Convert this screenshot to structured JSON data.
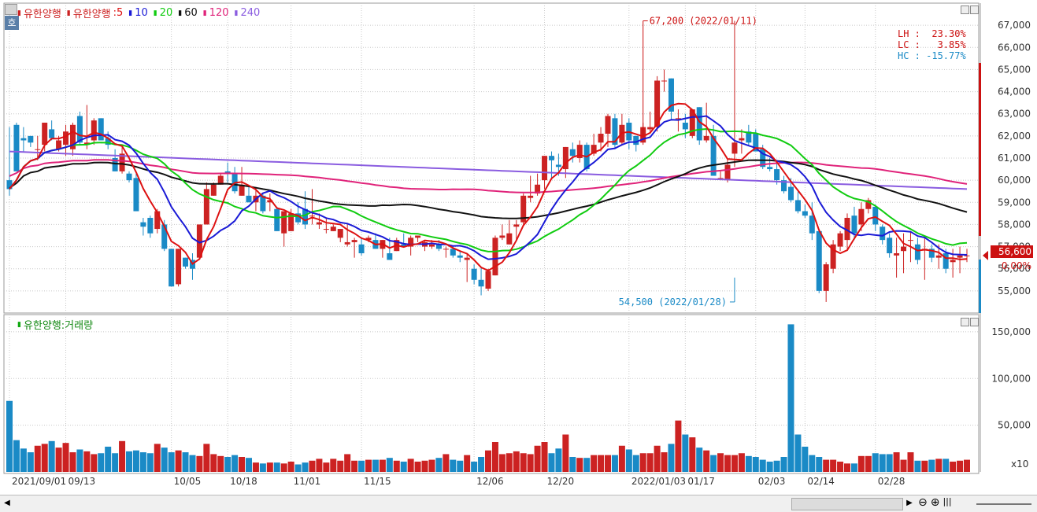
{
  "legend": {
    "stock_name": "유한양행",
    "ma_prefix": "유한양행",
    "ma_items": [
      {
        "label": ":5",
        "color": "#dd1111"
      },
      {
        "label": "10",
        "color": "#1a1ad6"
      },
      {
        "label": "20",
        "color": "#11cc11"
      },
      {
        "label": "60",
        "color": "#111111"
      },
      {
        "label": "120",
        "color": "#e0237a"
      },
      {
        "label": "240",
        "color": "#8a5ce0"
      }
    ]
  },
  "volume_legend": {
    "label": "유한양행:거래량"
  },
  "ho_button": "호",
  "stats": {
    "lh": "LH :  23.30%",
    "lc": "LC :   3.85%",
    "hc": "HC : -15.77%"
  },
  "current_price": "56,600",
  "change_pct": "0.00%",
  "volume_scale_note": "x10",
  "colors": {
    "up": "#cc2222",
    "down": "#1a8ac6",
    "ma5": "#dd1111",
    "ma10": "#1a1ad6",
    "ma20": "#11cc11",
    "ma60": "#111111",
    "ma120": "#e0237a",
    "ma240": "#8a5ce0"
  },
  "chart_data": [
    {
      "type": "candlestick",
      "title": "유한양행",
      "ylim": [
        54000,
        68000
      ],
      "y_ticks": [
        "67,000",
        "66,000",
        "65,000",
        "64,000",
        "63,000",
        "62,000",
        "61,000",
        "60,000",
        "59,000",
        "58,000",
        "57,000",
        "56,000",
        "55,000"
      ],
      "y_tick_values": [
        67000,
        66000,
        65000,
        64000,
        63000,
        62000,
        61000,
        60000,
        59000,
        58000,
        57000,
        56000,
        55000
      ],
      "x_ticks": [
        {
          "index": 0,
          "label": "2021/09/01"
        },
        {
          "index": 8,
          "label": "09/13"
        },
        {
          "index": 23,
          "label": "10/05"
        },
        {
          "index": 31,
          "label": "10/18"
        },
        {
          "index": 40,
          "label": "11/01"
        },
        {
          "index": 50,
          "label": "11/15"
        },
        {
          "index": 66,
          "label": "12/06"
        },
        {
          "index": 76,
          "label": "12/20"
        },
        {
          "index": 88,
          "label": "2022/01/03"
        },
        {
          "index": 96,
          "label": "01/17"
        },
        {
          "index": 106,
          "label": "02/03"
        },
        {
          "index": 113,
          "label": "02/14"
        },
        {
          "index": 123,
          "label": "02/28"
        }
      ],
      "annotations": [
        {
          "text": "67,200 (2022/01/11)",
          "index": 90,
          "value": 67200
        },
        {
          "text": "54,500 (2022/01/28)",
          "index": 103,
          "value": 54500
        }
      ],
      "candles": [
        [
          60000,
          62400,
          59300,
          59600
        ],
        [
          62500,
          62600,
          60400,
          60400
        ],
        [
          61900,
          62400,
          61300,
          61800
        ],
        [
          62000,
          62000,
          61500,
          61700
        ],
        [
          61400,
          62000,
          60900,
          61400
        ],
        [
          61600,
          62600,
          61300,
          62600
        ],
        [
          62300,
          62700,
          61800,
          61900
        ],
        [
          61400,
          62000,
          61300,
          61800
        ],
        [
          61600,
          62500,
          61100,
          62200
        ],
        [
          61400,
          62600,
          61100,
          62500
        ],
        [
          62900,
          63100,
          61600,
          61700
        ],
        [
          61600,
          63400,
          61400,
          61700
        ],
        [
          61800,
          62800,
          61600,
          62700
        ],
        [
          62800,
          62800,
          61800,
          61800
        ],
        [
          61900,
          62200,
          61400,
          61600
        ],
        [
          61000,
          61400,
          60400,
          60400
        ],
        [
          60400,
          61600,
          60300,
          61200
        ],
        [
          60300,
          60400,
          59900,
          60000
        ],
        [
          60100,
          60300,
          58600,
          58600
        ],
        [
          58100,
          58300,
          57500,
          57900
        ],
        [
          58300,
          58400,
          57400,
          57600
        ],
        [
          57800,
          58700,
          57600,
          58600
        ],
        [
          58000,
          58200,
          56800,
          56900
        ],
        [
          56900,
          56900,
          55200,
          55200
        ],
        [
          55300,
          56900,
          55200,
          56900
        ],
        [
          56500,
          56500,
          56000,
          56100
        ],
        [
          56400,
          56700,
          55500,
          56000
        ],
        [
          56500,
          58000,
          56500,
          58000
        ],
        [
          58000,
          59900,
          58000,
          59600
        ],
        [
          59300,
          59900,
          59300,
          59800
        ],
        [
          59800,
          60300,
          59800,
          60200
        ],
        [
          60400,
          60800,
          59900,
          60300
        ],
        [
          60300,
          60600,
          59400,
          59500
        ],
        [
          59300,
          60600,
          59300,
          59800
        ],
        [
          59300,
          59700,
          59000,
          59000
        ],
        [
          59000,
          59700,
          58600,
          59300
        ],
        [
          59300,
          59400,
          58500,
          58600
        ],
        [
          59000,
          59400,
          58600,
          59100
        ],
        [
          58700,
          58800,
          57700,
          57700
        ],
        [
          57600,
          58600,
          57000,
          58600
        ],
        [
          57700,
          58700,
          57700,
          58500
        ],
        [
          58500,
          59000,
          58000,
          58100
        ],
        [
          58700,
          59500,
          57800,
          58000
        ],
        [
          58400,
          59600,
          58000,
          58400
        ],
        [
          58000,
          58500,
          57800,
          58100
        ],
        [
          57800,
          58300,
          57600,
          57800
        ],
        [
          57700,
          58000,
          57700,
          57900
        ],
        [
          57400,
          57800,
          57200,
          57800
        ],
        [
          57100,
          58000,
          57000,
          57200
        ],
        [
          57200,
          57400,
          56500,
          57300
        ],
        [
          57100,
          57400,
          56600,
          56700
        ],
        [
          57300,
          57500,
          57200,
          57400
        ],
        [
          57300,
          57600,
          56900,
          56900
        ],
        [
          56900,
          57300,
          56500,
          57300
        ],
        [
          56700,
          57400,
          56400,
          56400
        ],
        [
          56800,
          57400,
          56800,
          57300
        ],
        [
          57100,
          57600,
          57000,
          57000
        ],
        [
          57000,
          57500,
          56600,
          57400
        ],
        [
          57400,
          57500,
          57200,
          57500
        ],
        [
          57000,
          57300,
          56800,
          57200
        ],
        [
          57000,
          57300,
          56900,
          57100
        ],
        [
          57100,
          57300,
          56800,
          56900
        ],
        [
          56900,
          57000,
          56500,
          56900
        ],
        [
          56900,
          57000,
          56500,
          56600
        ],
        [
          56600,
          56800,
          56300,
          56500
        ],
        [
          56400,
          56700,
          55400,
          56500
        ],
        [
          56000,
          56200,
          55300,
          55500
        ],
        [
          55500,
          56100,
          54800,
          55200
        ],
        [
          55100,
          56000,
          55000,
          55900
        ],
        [
          55700,
          57500,
          55700,
          57400
        ],
        [
          57400,
          58000,
          57300,
          57500
        ],
        [
          57100,
          58200,
          57100,
          57600
        ],
        [
          57900,
          58200,
          57300,
          58000
        ],
        [
          58100,
          59400,
          58000,
          59300
        ],
        [
          59200,
          60200,
          59000,
          59300
        ],
        [
          59400,
          60300,
          59300,
          59800
        ],
        [
          60000,
          61100,
          59600,
          61100
        ],
        [
          61100,
          61300,
          60100,
          60900
        ],
        [
          60700,
          61200,
          60200,
          60600
        ],
        [
          60500,
          61500,
          60100,
          61500
        ],
        [
          61400,
          61700,
          60800,
          61100
        ],
        [
          61000,
          61800,
          60800,
          61600
        ],
        [
          61600,
          61700,
          60400,
          60500
        ],
        [
          61200,
          62100,
          61100,
          61600
        ],
        [
          61700,
          62400,
          61300,
          62100
        ],
        [
          62100,
          63000,
          61500,
          62900
        ],
        [
          62800,
          63000,
          61400,
          61600
        ],
        [
          61700,
          63000,
          61600,
          62500
        ],
        [
          62600,
          62800,
          61400,
          61800
        ],
        [
          62000,
          62000,
          61300,
          61600
        ],
        [
          61700,
          62600,
          61600,
          62400
        ],
        [
          62300,
          63100,
          62200,
          62400
        ],
        [
          62400,
          64700,
          62200,
          64500
        ],
        [
          64500,
          65000,
          64000,
          64500
        ],
        [
          64600,
          64600,
          62700,
          63100
        ],
        [
          62800,
          63200,
          62200,
          62800
        ],
        [
          62600,
          63000,
          61900,
          62300
        ],
        [
          62000,
          63200,
          61900,
          63200
        ],
        [
          63300,
          63300,
          61600,
          61800
        ],
        [
          61800,
          63500,
          61700,
          62000
        ],
        [
          62000,
          62500,
          60200,
          60200
        ],
        [
          60100,
          60400,
          60000,
          60100
        ],
        [
          60000,
          61000,
          59900,
          60700
        ],
        [
          61200,
          67200,
          60600,
          61700
        ],
        [
          61800,
          62300,
          61200,
          61900
        ],
        [
          62200,
          62500,
          61600,
          61700
        ],
        [
          62100,
          62300,
          61300,
          61300
        ],
        [
          61400,
          61600,
          60500,
          60600
        ],
        [
          60600,
          61000,
          60400,
          60500
        ],
        [
          60500,
          60800,
          59800,
          60000
        ],
        [
          60000,
          60200,
          59400,
          59500
        ],
        [
          59700,
          60100,
          59000,
          59100
        ],
        [
          59100,
          59500,
          58500,
          58600
        ],
        [
          58600,
          58900,
          58300,
          58400
        ],
        [
          58400,
          59000,
          57300,
          57600
        ],
        [
          57700,
          57800,
          54900,
          55000
        ],
        [
          55000,
          56300,
          54500,
          56200
        ],
        [
          56000,
          57300,
          55800,
          57100
        ],
        [
          57000,
          57700,
          56800,
          57600
        ],
        [
          57300,
          58500,
          56900,
          58300
        ],
        [
          58400,
          58800,
          57300,
          57600
        ],
        [
          58000,
          59000,
          57700,
          58700
        ],
        [
          58700,
          59200,
          58500,
          59100
        ],
        [
          58800,
          58900,
          57700,
          58000
        ],
        [
          57900,
          58000,
          57100,
          57300
        ],
        [
          57400,
          57600,
          56500,
          56700
        ],
        [
          56600,
          57400,
          55600,
          56700
        ],
        [
          56800,
          57600,
          55800,
          57000
        ],
        [
          57300,
          57700,
          56300,
          57300
        ],
        [
          57100,
          57400,
          56200,
          56400
        ],
        [
          56900,
          57400,
          55500,
          56900
        ],
        [
          56900,
          57100,
          56300,
          56500
        ],
        [
          56500,
          57100,
          56000,
          56600
        ],
        [
          56700,
          56900,
          55800,
          56000
        ],
        [
          56300,
          56900,
          55600,
          56400
        ],
        [
          56500,
          57000,
          55800,
          56600
        ],
        [
          56600,
          56900,
          56300,
          56600
        ]
      ],
      "ma5": [
        58300,
        59300,
        60300,
        61100,
        61600,
        61800,
        61900,
        62100,
        61900,
        61800,
        61900,
        62200,
        62100,
        61900,
        61800,
        61600,
        61100,
        60800,
        60300,
        59800,
        59100,
        58700,
        58200,
        57600,
        57200,
        56700,
        56300,
        56300,
        56600,
        57200,
        58000,
        59000,
        59700,
        60100,
        60000,
        59800,
        59500,
        59300,
        59100,
        58900,
        58800,
        58600,
        58500,
        58300,
        58200,
        58000,
        57900,
        57900,
        57700,
        57600,
        57500,
        57400,
        57300,
        57100,
        57000,
        57100,
        57100,
        57200,
        57200,
        57200,
        57200,
        57100,
        57000,
        56900,
        56700,
        56500,
        56100,
        55800,
        55700,
        56000,
        56700,
        57200,
        57600,
        58200,
        58600,
        59000,
        59600,
        60100,
        60400,
        60700,
        61000,
        61000,
        61100,
        61100,
        61200,
        61400,
        61600,
        62000,
        62200,
        62400,
        62300,
        62400,
        62500,
        62900,
        63300,
        63500,
        63700,
        63700,
        63300,
        62700,
        62300,
        61600,
        61000,
        60600,
        60600,
        60500,
        60800,
        61300,
        61400,
        61200,
        60900,
        60600,
        60200,
        59900,
        59500,
        59200,
        58800,
        58400,
        58000,
        57500,
        56900,
        56500,
        56500,
        56800,
        57300,
        57800,
        58200,
        58300,
        58200,
        58000,
        57700,
        57400,
        57200,
        57000,
        56900,
        56800,
        56700,
        56600,
        56500,
        56500,
        56500,
        56500,
        56500
      ]
    },
    {
      "type": "bar",
      "title": "유한양행:거래량",
      "ylim": [
        0,
        160000
      ],
      "y_ticks": [
        "150,000",
        "100,000",
        "50,000"
      ],
      "y_tick_values": [
        150000,
        100000,
        50000
      ],
      "note": "x10",
      "values": [
        76000,
        34000,
        25000,
        21000,
        28000,
        30000,
        33000,
        26000,
        31000,
        21000,
        24000,
        22000,
        19000,
        20000,
        27000,
        20000,
        33000,
        22000,
        23000,
        21000,
        20000,
        30000,
        26000,
        21000,
        23000,
        21000,
        18000,
        17000,
        30000,
        19000,
        17000,
        16000,
        18000,
        16000,
        15000,
        10000,
        9000,
        10000,
        10000,
        9000,
        11000,
        8000,
        10000,
        12000,
        14000,
        10000,
        14000,
        12000,
        19000,
        12000,
        12000,
        13000,
        13000,
        13000,
        15000,
        12000,
        11000,
        14000,
        11000,
        12000,
        13000,
        15000,
        19000,
        13000,
        12000,
        18000,
        11000,
        16000,
        23000,
        32000,
        19000,
        20000,
        22000,
        20000,
        19000,
        28000,
        32000,
        20000,
        25000,
        40000,
        16000,
        15000,
        15000,
        18000,
        18000,
        18000,
        18000,
        28000,
        24000,
        18000,
        20000,
        20000,
        28000,
        21000,
        30000,
        55000,
        40000,
        37000,
        26000,
        23000,
        18000,
        20000,
        18000,
        18000,
        20000,
        17000,
        16000,
        13000,
        11000,
        12000,
        16000,
        158000,
        40000,
        27000,
        18000,
        16000,
        13000,
        13000,
        11000,
        9000,
        9000,
        17000,
        17000,
        20000,
        19000,
        19000,
        21000,
        13000,
        21000,
        12000,
        12000,
        13000,
        14000,
        14000,
        11000,
        12000,
        13000,
        15000,
        13000,
        29000,
        12000,
        10000,
        10000,
        11000,
        14000,
        10000
      ]
    }
  ]
}
